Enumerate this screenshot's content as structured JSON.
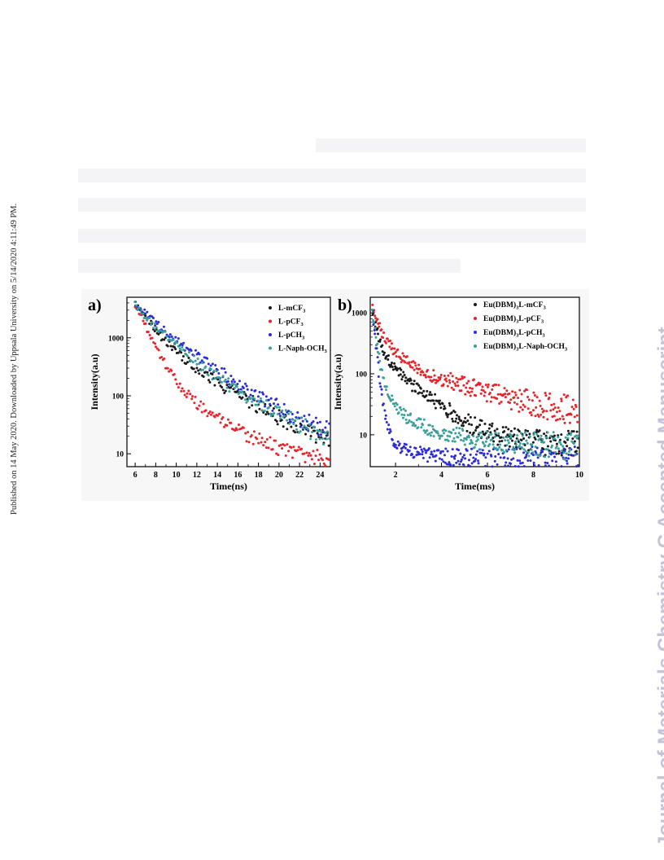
{
  "side_note": "Published on 14 May 2020. Downloaded by Uppsala University on 5/14/2020 4:11:49 PM.",
  "watermark": "Journal of Materials Chemistry C Accepted Manuscript",
  "chart_data": [
    {
      "panel_label": "a)",
      "type": "scatter",
      "xlabel": "Time(ns)",
      "ylabel": "Intensity(a.u)",
      "xlim": [
        5.2,
        25
      ],
      "ylim": [
        6,
        5000
      ],
      "yscale": "log",
      "xticks": [
        6,
        8,
        10,
        12,
        14,
        16,
        18,
        20,
        22,
        24
      ],
      "yticks": [
        10,
        100,
        1000
      ],
      "grid": false,
      "legend_position": "top-right",
      "series": [
        {
          "name": "L-mCF",
          "sub": "3",
          "color": "#1a1a1a",
          "x": [
            6,
            6.5,
            7,
            7.5,
            8,
            8.5,
            9,
            9.5,
            10,
            10.5,
            11,
            11.5,
            12,
            12.5,
            13,
            13.5,
            14,
            14.5,
            15,
            15.5,
            16,
            16.5,
            17,
            17.5,
            18,
            18.5,
            19,
            19.5,
            20,
            20.5,
            21,
            21.5,
            22,
            22.5,
            23,
            23.5,
            24,
            24.5,
            25
          ],
          "y": [
            3750,
            2850,
            2200,
            1720,
            1360,
            1080,
            860,
            700,
            580,
            480,
            410,
            350,
            300,
            255,
            222,
            192,
            168,
            148,
            130,
            115,
            103,
            92,
            82,
            74,
            66,
            59,
            53,
            48,
            43,
            39,
            35,
            32,
            29,
            26,
            24,
            22,
            20,
            18,
            17
          ]
        },
        {
          "name": "L-pCF",
          "sub": "3",
          "color": "#e8232a",
          "x": [
            6,
            6.5,
            7,
            7.5,
            8,
            8.5,
            9,
            9.5,
            10,
            10.5,
            11,
            11.5,
            12,
            12.5,
            13,
            13.5,
            14,
            14.5,
            15,
            15.5,
            16,
            16.5,
            17,
            17.5,
            18,
            18.5,
            19,
            19.5,
            20,
            20.5,
            21,
            21.5,
            22,
            22.5,
            23,
            23.5,
            24,
            24.5,
            25
          ],
          "y": [
            3750,
            2500,
            1600,
            1050,
            700,
            470,
            330,
            240,
            180,
            140,
            110,
            90,
            75,
            63,
            54,
            46,
            40,
            35,
            31,
            28,
            25,
            22.5,
            20.5,
            19,
            17.5,
            16,
            15,
            14,
            13,
            12.2,
            11.5,
            11,
            10.5,
            10,
            9.6,
            9.2,
            8.8,
            8.5,
            8.2
          ]
        },
        {
          "name": "L-pCH",
          "sub": "3",
          "color": "#2b2bd8",
          "x": [
            6,
            6.5,
            7,
            7.5,
            8,
            8.5,
            9,
            9.5,
            10,
            10.5,
            11,
            11.5,
            12,
            12.5,
            13,
            13.5,
            14,
            14.5,
            15,
            15.5,
            16,
            16.5,
            17,
            17.5,
            18,
            18.5,
            19,
            19.5,
            20,
            20.5,
            21,
            21.5,
            22,
            22.5,
            23,
            23.5,
            24,
            24.5,
            25
          ],
          "y": [
            3750,
            3100,
            2600,
            2150,
            1800,
            1500,
            1250,
            1050,
            890,
            760,
            650,
            560,
            480,
            415,
            360,
            315,
            275,
            240,
            210,
            185,
            163,
            144,
            128,
            113,
            100,
            89,
            80,
            71,
            63,
            57,
            51,
            46,
            42,
            38,
            34,
            31,
            28,
            26,
            24
          ]
        },
        {
          "name": "L-Naph-OCH",
          "sub": "3",
          "color": "#3a9e9a",
          "x": [
            6,
            6.5,
            7,
            7.5,
            8,
            8.5,
            9,
            9.5,
            10,
            10.5,
            11,
            11.5,
            12,
            12.5,
            13,
            13.5,
            14,
            14.5,
            15,
            15.5,
            16,
            16.5,
            17,
            17.5,
            18,
            18.5,
            19,
            19.5,
            20,
            20.5,
            21,
            21.5,
            22,
            22.5,
            23,
            23.5,
            24,
            24.5,
            25
          ],
          "y": [
            3750,
            2950,
            2350,
            1900,
            1550,
            1280,
            1060,
            880,
            740,
            620,
            520,
            440,
            375,
            320,
            275,
            238,
            206,
            180,
            157,
            137,
            121,
            107,
            95,
            84,
            75,
            67,
            60,
            54,
            48,
            43,
            39,
            35,
            32,
            29,
            26,
            24,
            22,
            20,
            19
          ]
        }
      ]
    },
    {
      "panel_label": "b)",
      "type": "scatter",
      "xlabel": "Time(ms)",
      "ylabel": "Intensity(a.u)",
      "xlim": [
        0.9,
        10
      ],
      "ylim": [
        3,
        1800
      ],
      "yscale": "log",
      "xticks": [
        2,
        4,
        6,
        8,
        10
      ],
      "yticks": [
        10,
        100,
        1000
      ],
      "grid": false,
      "legend_position": "top-right",
      "series": [
        {
          "name": "Eu(DBM)",
          "mid": "3",
          "tail": "L-mCF",
          "sub": "3",
          "color": "#1a1a1a",
          "x": [
            1,
            1.2,
            1.4,
            1.6,
            1.8,
            2,
            2.3,
            2.6,
            3,
            3.5,
            4,
            4.5,
            5,
            5.5,
            6,
            6.5,
            7,
            7.5,
            8,
            8.5,
            9,
            9.5,
            10
          ],
          "y": [
            1000,
            480,
            280,
            190,
            150,
            120,
            92,
            72,
            55,
            40,
            30,
            22,
            17,
            13,
            11,
            9.5,
            8.5,
            8,
            7.5,
            7.2,
            7,
            6.8,
            6.6
          ]
        },
        {
          "name": "Eu(DBM)",
          "mid": "3",
          "tail": "L-pCF",
          "sub": "3",
          "color": "#e8232a",
          "x": [
            1,
            1.2,
            1.4,
            1.6,
            1.8,
            2,
            2.3,
            2.6,
            3,
            3.5,
            4,
            4.5,
            5,
            5.5,
            6,
            6.5,
            7,
            7.5,
            8,
            8.5,
            9,
            9.5,
            10
          ],
          "y": [
            1200,
            720,
            490,
            360,
            280,
            225,
            180,
            148,
            120,
            98,
            84,
            73,
            64,
            57,
            50,
            45,
            40,
            36,
            33,
            30,
            28,
            26,
            24
          ]
        },
        {
          "name": "Eu(DBM)",
          "mid": "3",
          "tail": "L-pCH",
          "sub": "3",
          "color": "#2b2bd8",
          "x": [
            1,
            1.1,
            1.2,
            1.3,
            1.4,
            1.5,
            1.6,
            1.7,
            1.8,
            1.9,
            2,
            2.2,
            2.5,
            3,
            3.5,
            4,
            5,
            6,
            7,
            8,
            9,
            10
          ],
          "y": [
            1000,
            420,
            180,
            85,
            45,
            26,
            17,
            12,
            9.5,
            8,
            7,
            6.2,
            5.6,
            5,
            4.6,
            4.4,
            4.2,
            4,
            4,
            4,
            4,
            4
          ]
        },
        {
          "name": "Eu(DBM)",
          "mid": "3",
          "tail": "L-Naph-OCH",
          "sub": "3",
          "color": "#3a9e9a",
          "x": [
            1,
            1.1,
            1.2,
            1.3,
            1.4,
            1.5,
            1.6,
            1.7,
            1.8,
            2,
            2.2,
            2.5,
            3,
            3.5,
            4,
            4.5,
            5,
            6,
            7,
            8,
            9,
            10
          ],
          "y": [
            1000,
            520,
            290,
            170,
            110,
            78,
            58,
            46,
            38,
            29,
            24,
            19,
            15,
            12.5,
            11,
            10,
            9,
            8,
            7.5,
            7,
            6.8,
            6.5
          ]
        }
      ]
    }
  ]
}
